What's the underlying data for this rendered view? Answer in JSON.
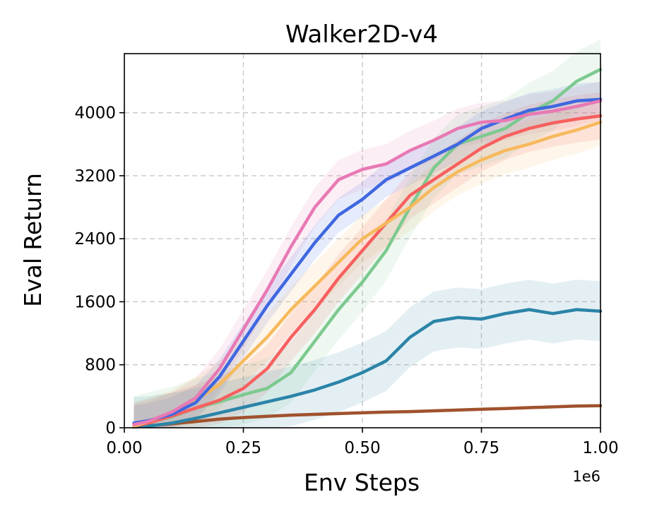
{
  "chart_data": {
    "type": "line",
    "title": "Walker2D-v4",
    "xlabel": "Env Steps",
    "ylabel": "Eval Return",
    "x_offset_label": "1e6",
    "xlim": [
      0,
      1.0
    ],
    "ylim": [
      0,
      4750
    ],
    "xticks": [
      0,
      0.25,
      0.5,
      0.75,
      1.0
    ],
    "xtick_labels": [
      "0.00",
      "0.25",
      "0.50",
      "0.75",
      "1.00"
    ],
    "yticks": [
      0,
      800,
      1600,
      2400,
      3200,
      4000
    ],
    "ytick_labels": [
      "0",
      "800",
      "1600",
      "2400",
      "3200",
      "4000"
    ],
    "grid": true,
    "legend": "none",
    "x": [
      0.02,
      0.05,
      0.1,
      0.15,
      0.2,
      0.25,
      0.3,
      0.35,
      0.4,
      0.45,
      0.5,
      0.55,
      0.6,
      0.65,
      0.7,
      0.75,
      0.8,
      0.85,
      0.9,
      0.95,
      1.0
    ],
    "series": [
      {
        "name": "pink",
        "color": "#e879b4",
        "band": 250,
        "values": [
          40,
          80,
          200,
          380,
          750,
          1250,
          1750,
          2300,
          2800,
          3150,
          3280,
          3350,
          3520,
          3650,
          3800,
          3880,
          3900,
          3980,
          4020,
          4080,
          4150
        ]
      },
      {
        "name": "blue",
        "color": "#3f67e0",
        "band": 220,
        "values": [
          60,
          90,
          170,
          320,
          650,
          1100,
          1550,
          1950,
          2350,
          2700,
          2900,
          3150,
          3300,
          3450,
          3600,
          3800,
          3920,
          4030,
          4080,
          4150,
          4170
        ]
      },
      {
        "name": "orange",
        "color": "#f6b95c",
        "band": 300,
        "values": [
          20,
          80,
          180,
          350,
          550,
          850,
          1150,
          1500,
          1800,
          2100,
          2400,
          2600,
          2800,
          3050,
          3250,
          3400,
          3520,
          3600,
          3700,
          3780,
          3880
        ]
      },
      {
        "name": "red",
        "color": "#f7605f",
        "band": 300,
        "values": [
          20,
          60,
          150,
          250,
          350,
          500,
          750,
          1150,
          1500,
          1900,
          2250,
          2600,
          2950,
          3150,
          3350,
          3550,
          3700,
          3800,
          3870,
          3920,
          3960
        ]
      },
      {
        "name": "green",
        "color": "#7dc98f",
        "band": 380,
        "values": [
          20,
          70,
          140,
          250,
          330,
          420,
          500,
          700,
          1100,
          1500,
          1850,
          2250,
          2800,
          3300,
          3600,
          3700,
          3800,
          4000,
          4150,
          4400,
          4550
        ]
      },
      {
        "name": "teal",
        "color": "#2b84a8",
        "band": 380,
        "values": [
          10,
          20,
          60,
          120,
          190,
          260,
          330,
          400,
          480,
          580,
          700,
          850,
          1150,
          1350,
          1400,
          1380,
          1450,
          1500,
          1450,
          1500,
          1480
        ]
      },
      {
        "name": "brown",
        "color": "#a0522d",
        "band": 12,
        "values": [
          10,
          25,
          50,
          80,
          110,
          130,
          145,
          160,
          170,
          180,
          190,
          200,
          205,
          215,
          225,
          235,
          245,
          255,
          265,
          275,
          280
        ]
      }
    ]
  }
}
